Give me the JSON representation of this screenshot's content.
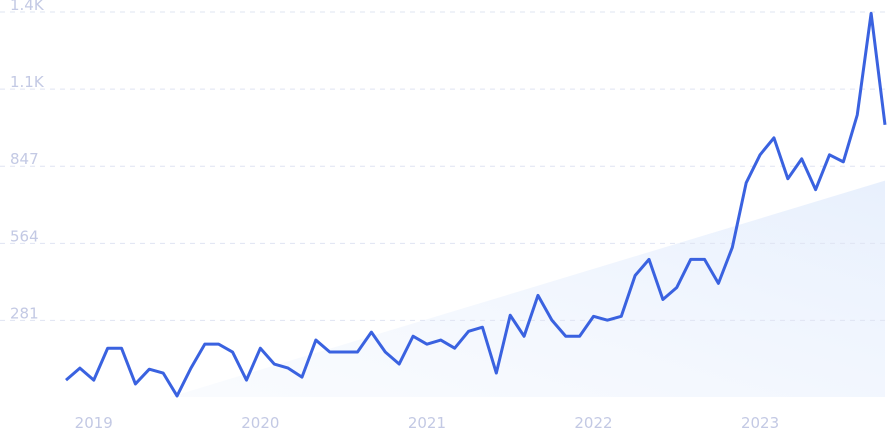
{
  "chart_data": {
    "type": "line",
    "categories": [
      null,
      null,
      "2019",
      null,
      null,
      null,
      null,
      null,
      null,
      null,
      null,
      null,
      null,
      null,
      "2020",
      null,
      null,
      null,
      null,
      null,
      null,
      null,
      null,
      null,
      null,
      null,
      "2021",
      null,
      null,
      null,
      null,
      null,
      null,
      null,
      null,
      null,
      null,
      null,
      "2022",
      null,
      null,
      null,
      null,
      null,
      null,
      null,
      null,
      null,
      null,
      null,
      "2023",
      null,
      null,
      null,
      null,
      null,
      null,
      null,
      null,
      null
    ],
    "series": [
      {
        "color": "#3a62e0",
        "values": [
          62,
          106,
          62,
          179,
          179,
          48,
          102,
          88,
          4,
          106,
          194,
          194,
          165,
          62,
          179,
          121,
          106,
          73,
          209,
          165,
          165,
          165,
          238,
          165,
          121,
          223,
          194,
          209,
          179,
          241,
          256,
          88,
          300,
          223,
          373,
          282,
          223,
          223,
          296,
          282,
          296,
          446,
          505,
          358,
          402,
          505,
          505,
          417,
          549,
          786,
          889,
          951,
          801,
          874,
          761,
          889,
          863,
          1035,
          1408,
          999
        ]
      }
    ],
    "trend": {
      "x": [
        7.5,
        59
      ],
      "values": [
        0,
        794
      ],
      "color": "#e6effc"
    },
    "ylim": [
      0,
      1413
    ],
    "yticks": [
      281,
      564,
      847,
      {
        "value": 1130,
        "label": "1.1K"
      },
      {
        "value": 1413,
        "label": "1.4K"
      }
    ],
    "grid": true
  }
}
